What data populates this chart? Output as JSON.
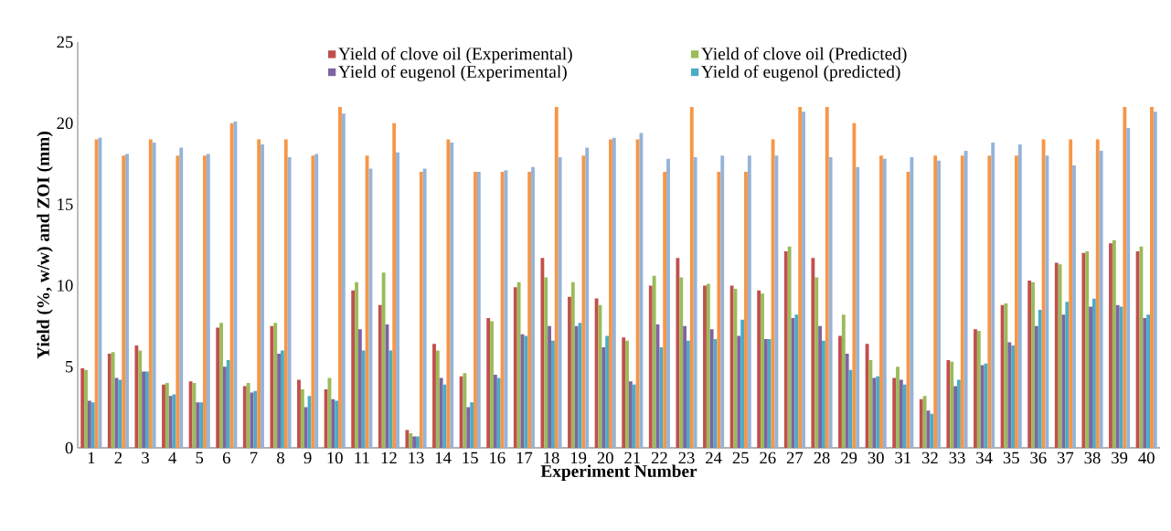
{
  "chart_data": {
    "type": "bar",
    "xlabel": "Experiment Number",
    "ylabel": "Yield (%, w/w) and ZOI (mm)",
    "categories": [
      "1",
      "2",
      "3",
      "4",
      "5",
      "6",
      "7",
      "8",
      "9",
      "10",
      "11",
      "12",
      "13",
      "14",
      "15",
      "16",
      "17",
      "18",
      "19",
      "20",
      "21",
      "22",
      "23",
      "24",
      "25",
      "26",
      "27",
      "28",
      "29",
      "30",
      "31",
      "32",
      "33",
      "34",
      "35",
      "36",
      "37",
      "38",
      "39",
      "40"
    ],
    "ylim": [
      0,
      25
    ],
    "yticks": [
      0,
      5,
      10,
      15,
      20,
      25
    ],
    "legend": "top",
    "grid": false,
    "series": [
      {
        "name": "Yield of clove oil (Experimental)",
        "color": "#c0504d",
        "values": [
          4.9,
          5.8,
          6.3,
          3.9,
          4.1,
          7.4,
          3.8,
          7.5,
          4.2,
          3.6,
          9.7,
          8.8,
          1.1,
          6.4,
          4.4,
          8.0,
          9.9,
          11.7,
          9.3,
          9.2,
          6.8,
          10.0,
          11.7,
          10.0,
          10.0,
          9.7,
          12.1,
          11.7,
          6.9,
          6.4,
          4.3,
          3.0,
          5.4,
          7.3,
          8.8,
          10.3,
          11.4,
          12.0,
          12.6,
          12.1
        ]
      },
      {
        "name": "Yield of clove oil (Predicted)",
        "color": "#9bbb59",
        "values": [
          4.8,
          5.9,
          6.0,
          4.0,
          4.0,
          7.7,
          4.0,
          7.7,
          3.6,
          4.3,
          10.2,
          10.8,
          0.9,
          6.0,
          4.6,
          7.8,
          10.2,
          10.5,
          10.2,
          8.8,
          6.6,
          10.6,
          10.5,
          10.1,
          9.8,
          9.5,
          12.4,
          10.5,
          8.2,
          5.4,
          5.0,
          3.2,
          5.3,
          7.2,
          8.9,
          10.2,
          11.3,
          12.1,
          12.8,
          12.4
        ]
      },
      {
        "name": "Yield of eugenol (Experimental)",
        "color": "#8064a2",
        "values": [
          2.9,
          4.3,
          4.7,
          3.2,
          2.8,
          5.0,
          3.4,
          5.8,
          2.5,
          3.0,
          7.3,
          7.6,
          0.7,
          4.3,
          2.5,
          4.5,
          7.0,
          7.5,
          7.5,
          6.2,
          4.1,
          7.6,
          7.5,
          7.3,
          6.9,
          6.7,
          8.0,
          7.5,
          5.8,
          4.3,
          4.2,
          2.3,
          3.8,
          5.1,
          6.5,
          7.5,
          8.2,
          8.7,
          8.8,
          8.0
        ]
      },
      {
        "name": "Yield of eugenol (predicted)",
        "color": "#4bacc6",
        "values": [
          2.8,
          4.2,
          4.7,
          3.3,
          2.8,
          5.4,
          3.5,
          6.0,
          3.2,
          2.9,
          6.0,
          6.0,
          0.7,
          3.9,
          2.8,
          4.3,
          6.9,
          6.6,
          7.7,
          6.9,
          3.9,
          6.2,
          6.6,
          6.7,
          7.9,
          6.7,
          8.2,
          6.6,
          4.8,
          4.4,
          3.9,
          2.1,
          4.2,
          5.2,
          6.3,
          8.5,
          9.0,
          9.2,
          8.7,
          8.2
        ]
      },
      {
        "color": "#f79646",
        "values": [
          19,
          18,
          19,
          18,
          18,
          20,
          19,
          19,
          18,
          21,
          18,
          20,
          17,
          19,
          17,
          17,
          17,
          21,
          18,
          19,
          19,
          17,
          21,
          17,
          17,
          19,
          21,
          21,
          20,
          18,
          17,
          18,
          18,
          18,
          18,
          19,
          19,
          19,
          21,
          21
        ]
      },
      {
        "color": "#95b3d7",
        "values": [
          19.1,
          18.1,
          18.8,
          18.5,
          18.1,
          20.1,
          18.7,
          17.9,
          18.1,
          20.6,
          17.2,
          18.2,
          17.2,
          18.8,
          17.0,
          17.1,
          17.3,
          17.9,
          18.5,
          19.1,
          19.4,
          17.8,
          17.9,
          18.0,
          18.0,
          18.0,
          20.7,
          17.9,
          17.3,
          17.8,
          17.9,
          17.7,
          18.3,
          18.8,
          18.7,
          18.0,
          17.4,
          18.3,
          19.7,
          20.7
        ]
      }
    ]
  }
}
